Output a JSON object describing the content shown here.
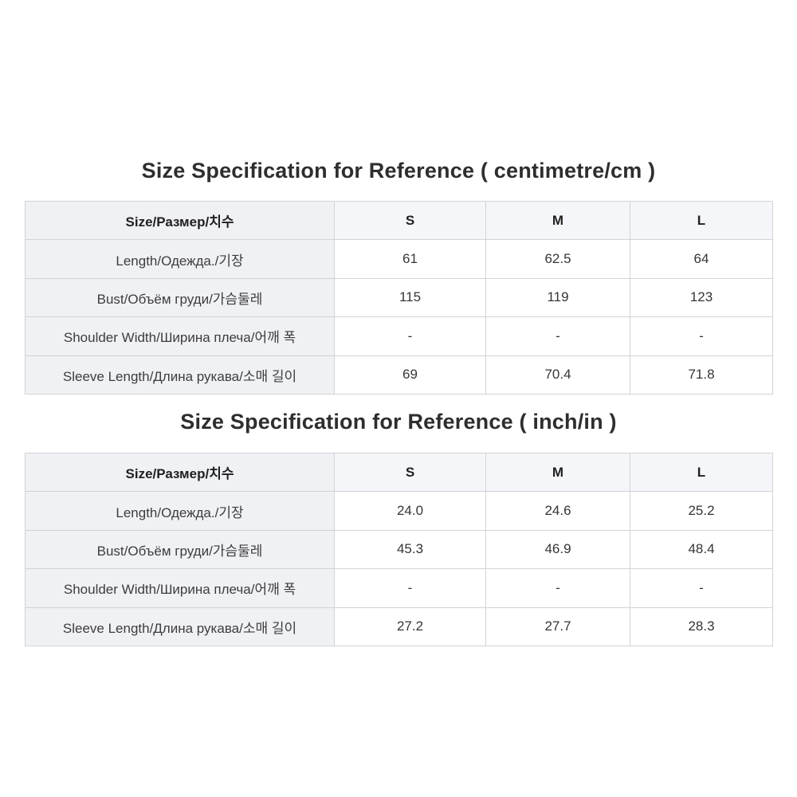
{
  "colors": {
    "page_background": "#ffffff",
    "header_row_background": "#f5f6f9",
    "label_column_background": "#f0f1f5",
    "grid_border": "#d2d3d5",
    "title_text": "#2e2e2e",
    "cell_text": "#353535"
  },
  "tables": [
    {
      "title": "Size Specification for Reference ( centimetre/cm )",
      "unit": "centimetre/cm",
      "header": [
        "Size/Размер/치수",
        "S",
        "M",
        "L"
      ],
      "rows": [
        {
          "label": "Length/Одежда./기장",
          "values": [
            "61",
            "62.5",
            "64"
          ]
        },
        {
          "label": "Bust/Объём груди/가슴둘레",
          "values": [
            "115",
            "119",
            "123"
          ]
        },
        {
          "label": "Shoulder Width/Ширина плеча/어깨 폭",
          "values": [
            "-",
            "-",
            "-"
          ]
        },
        {
          "label": "Sleeve Length/Длина рукава/소매 길이",
          "values": [
            "69",
            "70.4",
            "71.8"
          ]
        }
      ]
    },
    {
      "title": "Size Specification for Reference ( inch/in )",
      "unit": "inch/in",
      "header": [
        "Size/Размер/치수",
        "S",
        "M",
        "L"
      ],
      "rows": [
        {
          "label": "Length/Одежда./기장",
          "values": [
            "24.0",
            "24.6",
            "25.2"
          ]
        },
        {
          "label": "Bust/Объём груди/가슴둘레",
          "values": [
            "45.3",
            "46.9",
            "48.4"
          ]
        },
        {
          "label": "Shoulder Width/Ширина плеча/어깨 폭",
          "values": [
            "-",
            "-",
            "-"
          ]
        },
        {
          "label": "Sleeve Length/Длина рукава/소매 길이",
          "values": [
            "27.2",
            "27.7",
            "28.3"
          ]
        }
      ]
    }
  ]
}
